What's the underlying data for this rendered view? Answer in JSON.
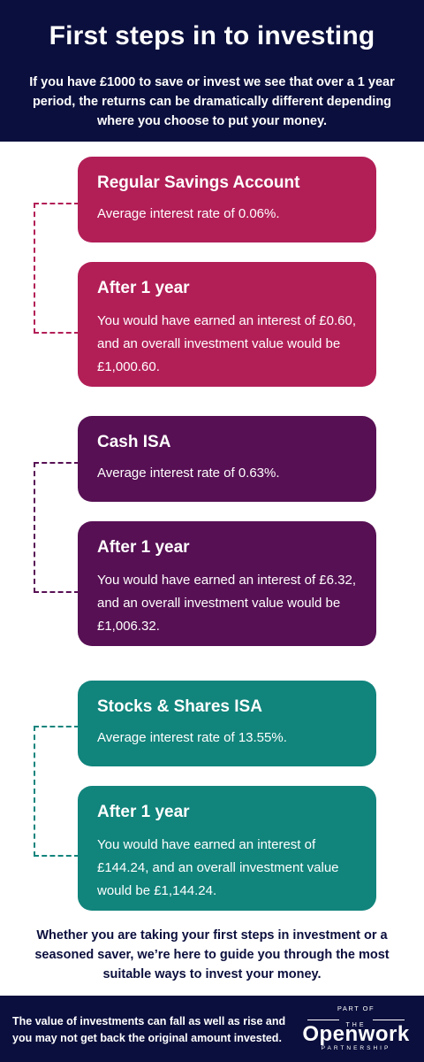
{
  "header": {
    "title": "First steps in to investing",
    "intro": "If you have £1000 to save or invest we see that over a 1 year period, the returns can be dramatically different depending where you choose to put your money."
  },
  "accounts": [
    {
      "name": "Regular Savings Account",
      "rate_text": "Average interest rate of 0.06%.",
      "after_title": "After 1 year",
      "after_text": "You would have earned an interest of £0.60, and an overall investment value would be £1,000.60.",
      "color": "#b21f57"
    },
    {
      "name": "Cash ISA",
      "rate_text": "Average interest rate of 0.63%.",
      "after_title": "After 1 year",
      "after_text": "You would have earned an interest of £6.32, and an overall investment value would be £1,006.32.",
      "color": "#571054"
    },
    {
      "name": "Stocks & Shares ISA",
      "rate_text": "Average interest rate of 13.55%.",
      "after_title": "After 1 year",
      "after_text": "You would have earned an interest of £144.24, and an overall investment value would be £1,144.24.",
      "color": "#11847c"
    }
  ],
  "closing_text": "Whether you are taking your first steps in investment or a seasoned saver, we’re here to guide you through the most suitable ways to invest your money.",
  "footer": {
    "disclaimer": "The value of investments can fall as well as rise and you may not get back the original amount invested.",
    "logo": {
      "part_of": "PART OF",
      "the": "THE",
      "name": "Openwork",
      "sub": "PARTNERSHIP"
    }
  },
  "colors": {
    "navy": "#0b0f3d",
    "magenta": "#b21f57",
    "purple": "#571054",
    "teal": "#11847c"
  }
}
